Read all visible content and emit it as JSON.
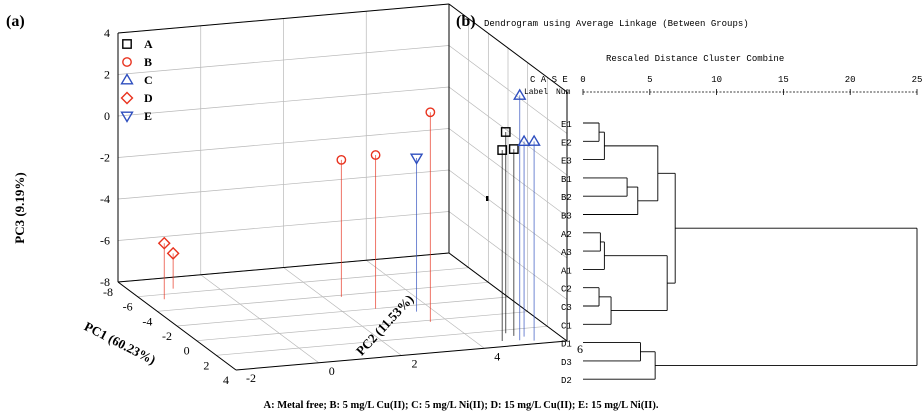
{
  "chart_data": [
    {
      "panel": "(a)",
      "type": "scatter",
      "title": "",
      "xlabel": "PC1 (60.23%)",
      "ylabel": "PC2 (11.53%)",
      "zlabel": "PC3 (9.19%)",
      "xticks": [
        "-8",
        "-6",
        "-4",
        "-2",
        "0",
        "2",
        "4"
      ],
      "yticks": [
        "-2",
        "0",
        "2",
        "4",
        "6"
      ],
      "zticks": [
        "4",
        "2",
        "0",
        "-2",
        "-4",
        "-6",
        "-8"
      ],
      "xlim": [
        -8,
        4
      ],
      "ylim": [
        -2,
        6
      ],
      "zlim": [
        -8,
        4
      ],
      "grid": true,
      "legend_position": "top-left",
      "series": [
        {
          "name": "A",
          "marker": "square",
          "color": "#000000",
          "points": [
            [
              2.8,
              5.0,
              1.0
            ],
            [
              3.3,
              4.6,
              1.2
            ],
            [
              2.4,
              4.9,
              1.7
            ]
          ]
        },
        {
          "name": "B",
          "marker": "circle",
          "color": "#e8321e",
          "points": [
            [
              -3.8,
              2.4,
              -1.4
            ],
            [
              -2.0,
              2.8,
              -0.6
            ],
            [
              0.2,
              3.6,
              2.1
            ]
          ]
        },
        {
          "name": "C",
          "marker": "triangle-up",
          "color": "#2f4fbf",
          "points": [
            [
              3.0,
              5.2,
              1.4
            ],
            [
              3.6,
              5.3,
              1.6
            ],
            [
              3.4,
              5.0,
              3.8
            ]
          ]
        },
        {
          "name": "D",
          "marker": "diamond",
          "color": "#e8321e",
          "points": [
            [
              -6.6,
              -1.0,
              -6.3
            ],
            [
              -5.4,
              -1.5,
              -5.3
            ]
          ]
        },
        {
          "name": "E",
          "marker": "triangle-down",
          "color": "#2f4fbf",
          "points": [
            [
              -1.2,
              3.6,
              -0.6
            ]
          ]
        }
      ]
    },
    {
      "panel": "(b)",
      "type": "dendrogram",
      "title": "Dendrogram using Average Linkage (Between Groups)",
      "subtitle": "Rescaled Distance Cluster Combine",
      "case_header": "C A S E",
      "label_header": "Label",
      "num_header": "Num",
      "xticks": [
        "0",
        "5",
        "10",
        "15",
        "20",
        "25"
      ],
      "xlim": [
        0,
        25
      ],
      "leaves": [
        "E1",
        "E2",
        "E3",
        "B1",
        "B2",
        "B3",
        "A2",
        "A3",
        "A1",
        "C2",
        "C3",
        "C1",
        "D1",
        "D3",
        "D2"
      ],
      "merges": [
        {
          "a": "E1",
          "b": "E2",
          "distance": 1.2
        },
        {
          "a": "(E1,E2)",
          "b": "E3",
          "distance": 1.6
        },
        {
          "a": "B1",
          "b": "B2",
          "distance": 3.3
        },
        {
          "a": "(B1,B2)",
          "b": "B3",
          "distance": 4.1
        },
        {
          "a": "(E)",
          "b": "(B)",
          "distance": 5.6
        },
        {
          "a": "A2",
          "b": "A3",
          "distance": 1.3
        },
        {
          "a": "(A2,A3)",
          "b": "A1",
          "distance": 1.6
        },
        {
          "a": "C2",
          "b": "C3",
          "distance": 1.2
        },
        {
          "a": "(C2,C3)",
          "b": "C1",
          "distance": 2.1
        },
        {
          "a": "(A)",
          "b": "(C)",
          "distance": 6.3
        },
        {
          "a": "(E,B)",
          "b": "(A,C)",
          "distance": 6.9
        },
        {
          "a": "D1",
          "b": "D3",
          "distance": 4.3
        },
        {
          "a": "(D1,D3)",
          "b": "D2",
          "distance": 5.4
        },
        {
          "a": "(E,B,A,C)",
          "b": "(D)",
          "distance": 25
        }
      ]
    }
  ],
  "caption": "A: Metal free; B: 5 mg/L Cu(II); C: 5 mg/L Ni(II); D: 15 mg/L Cu(II); E: 15 mg/L Ni(II).",
  "colors": {
    "red": "#e8321e",
    "blue": "#2f4fbf",
    "black": "#000000"
  }
}
